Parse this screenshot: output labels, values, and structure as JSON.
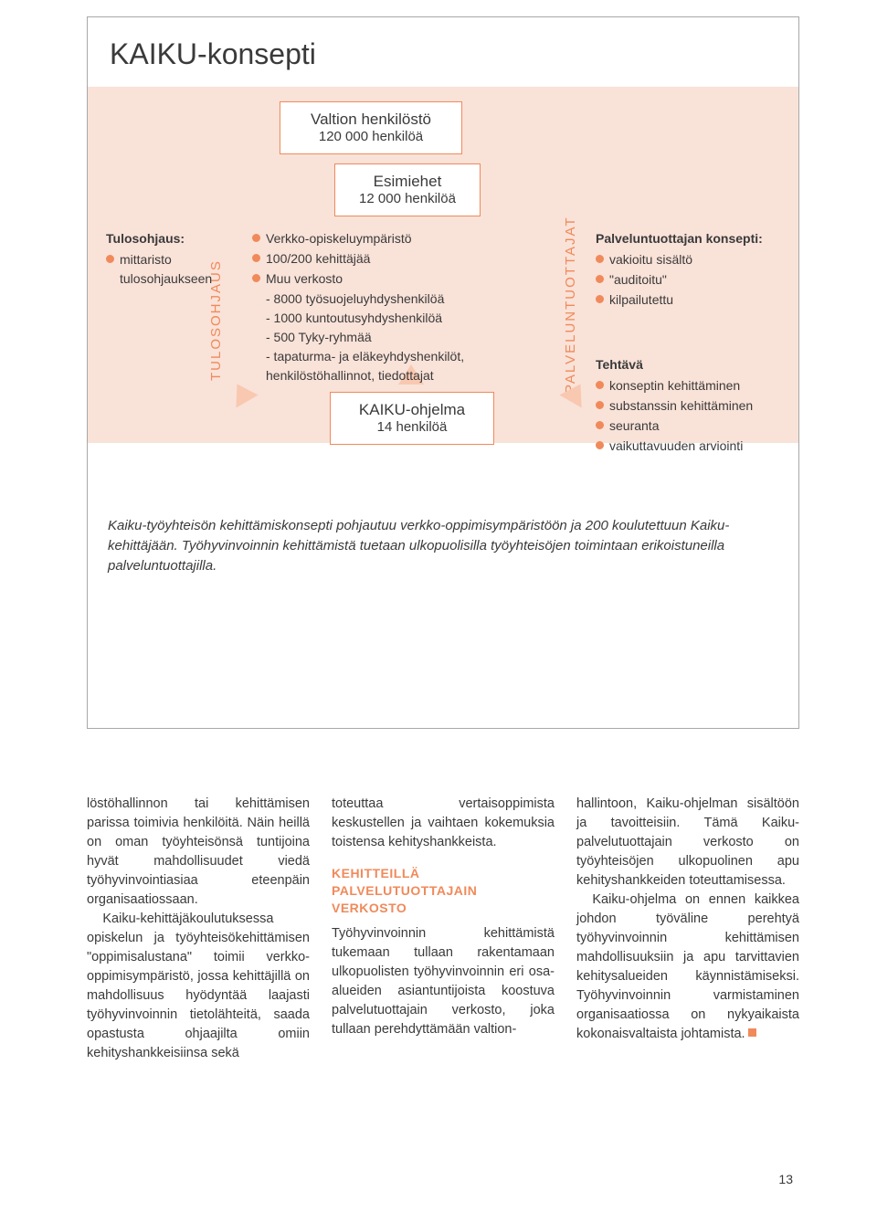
{
  "colors": {
    "accent": "#f08a5b",
    "pink_bg": "#f9e2d8",
    "arrow_fill": "#f9c8b1",
    "text": "#3a3a3a",
    "frame_border": "#a8a8a8"
  },
  "diagram": {
    "title": "KAIKU-konsepti",
    "boxes": {
      "valtion": {
        "title": "Valtion henkilöstö",
        "sub": "120 000 henkilöä"
      },
      "esimiehet": {
        "title": "Esimiehet",
        "sub": "12 000 henkilöä"
      },
      "program": {
        "title": "KAIKU-ohjelma",
        "sub": "14 henkilöä"
      }
    },
    "vertical_labels": {
      "left": "TULOSOHJAUS",
      "right": "PALVELUNTUOTTAJAT"
    },
    "col_left": {
      "heading": "Tulosohjaus:",
      "items": [
        "mittaristo tulosohjaukseen"
      ]
    },
    "col_mid": {
      "items": [
        "Verkko-opiskeluympäristö",
        "100/200 kehittäjää",
        "Muu verkosto"
      ],
      "sub_items": [
        "- 8000 työsuojeluyhdyshenkilöä",
        "- 1000 kuntoutusyhdyshenkilöä",
        "- 500 Tyky-ryhmää",
        "- tapaturma- ja eläkeyhdyshenkilöt, henkilöstöhallinnot, tiedottajat"
      ]
    },
    "col_right": {
      "heading": "Palveluntuottajan konsepti:",
      "items": [
        "vakioitu sisältö",
        "\"auditoitu\"",
        "kilpailutettu"
      ]
    },
    "col_right2": {
      "heading": "Tehtävä",
      "items": [
        "konseptin kehittäminen",
        "substanssin kehittäminen",
        "seuranta",
        "vaikuttavuuden arviointi"
      ]
    },
    "caption": "Kaiku-työyhteisön kehittämiskonsepti pohjautuu verkko-oppimisympäristöön ja 200 koulutettuun Kaiku-kehittäjään. Työhyvinvoinnin kehittämistä tuetaan ulkopuolisilla työyhteisöjen toimintaan erikoistuneilla palveluntuottajilla."
  },
  "article": {
    "col1": {
      "p1": "löstöhallinnon tai kehittämisen parissa toimivia henkilöitä. Näin heillä on oman työyhteisönsä tuntijoina hyvät mahdollisuudet viedä työhyvinvointiasiaa eteenpäin organisaatiossaan.",
      "p2": "Kaiku-kehittäjäkoulutuksessa opiskelun ja työyhteisökehittämisen \"oppimisalustana\" toimii verkko-oppimisympäristö, jossa kehittäjillä on mahdollisuus hyödyntää laajasti työhyvinvoinnin tietolähteitä, saada opastusta ohjaajilta omiin kehityshankkeisiinsa sekä"
    },
    "col2": {
      "p1": "toteuttaa vertaisoppimista keskustellen ja vaihtaen kokemuksia toistensa kehityshankkeista.",
      "heading": "KEHITTEILLÄ PALVELUTUOTTAJAIN VERKOSTO",
      "p2": "Työhyvinvoinnin kehittämistä tukemaan tullaan rakentamaan ulkopuolisten työhyvinvoinnin eri osa-alueiden asiantuntijoista koostuva palvelutuottajain verkosto, joka tullaan perehdyttämään valtion-"
    },
    "col3": {
      "p1": "hallintoon, Kaiku-ohjelman sisältöön ja tavoitteisiin. Tämä Kaiku-palvelutuottajain verkosto on työyhteisöjen ulkopuolinen apu kehityshankkeiden toteuttamisessa.",
      "p2": "Kaiku-ohjelma on ennen kaikkea johdon työväline perehtyä työhyvinvoinnin kehittämisen mahdollisuuksiin ja apu tarvittavien kehitysalueiden käynnistämiseksi. Työhyvinvoinnin varmistaminen organisaatiossa on nykyaikaista kokonaisvaltaista johtamista."
    }
  },
  "page_number": "13"
}
